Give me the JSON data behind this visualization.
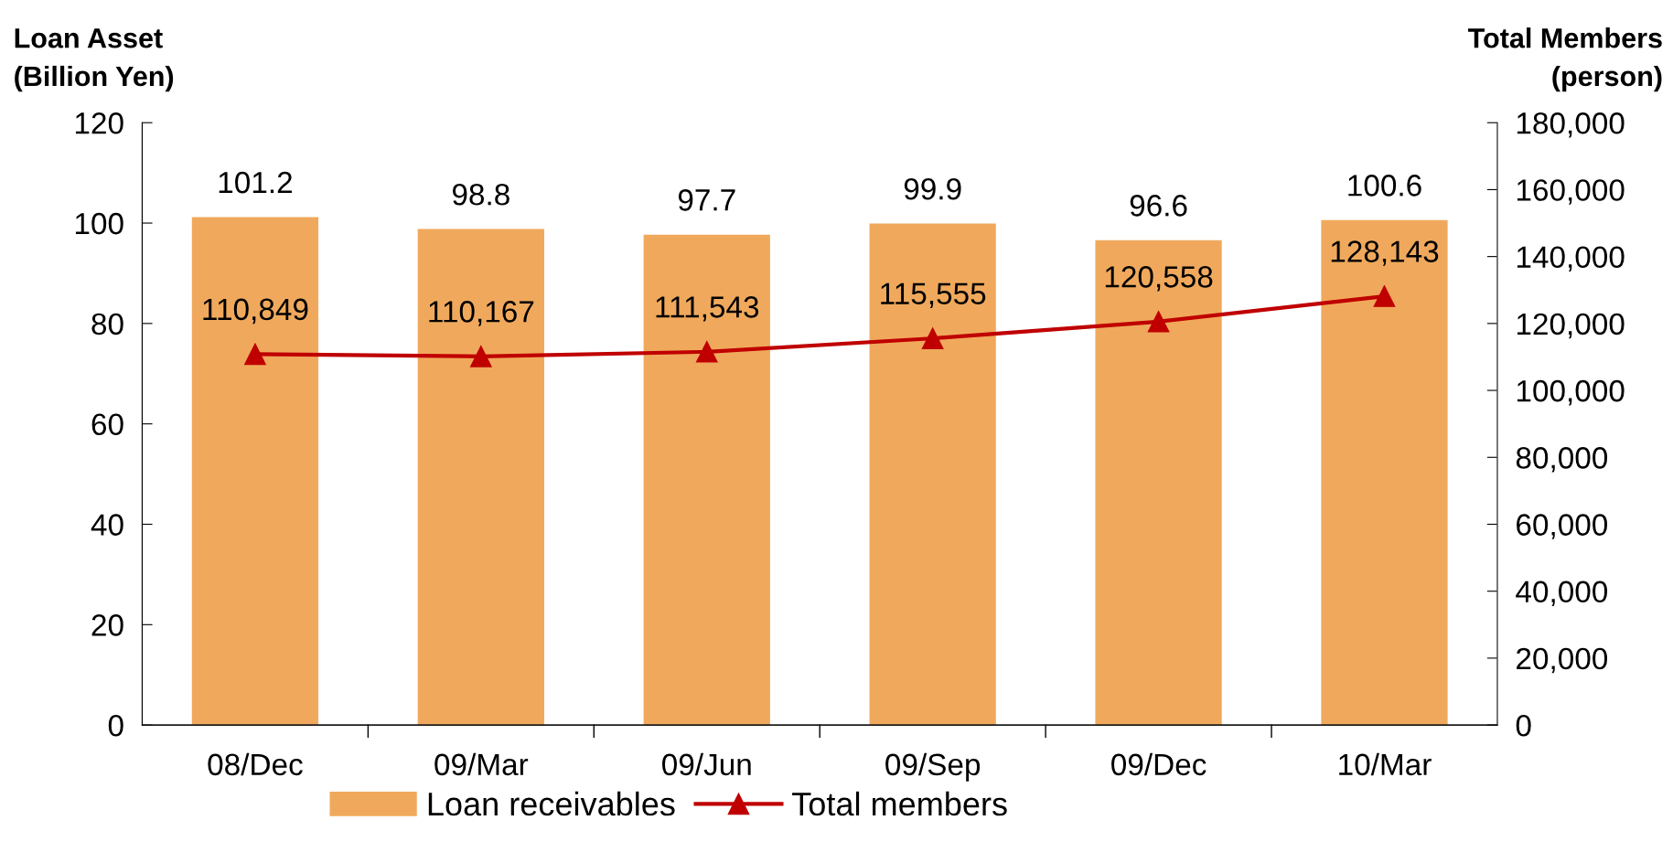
{
  "chart_data": {
    "type": "bar",
    "ylabel": "Loan Asset\n(Billion Yen)",
    "y2label": "Total Members\n(person)",
    "categories": [
      "08/Dec",
      "09/Mar",
      "09/Jun",
      "09/Sep",
      "09/Dec",
      "10/Mar"
    ],
    "series": [
      {
        "name": "Loan receivables",
        "color": "#f0a95c",
        "values": [
          101.2,
          98.8,
          97.7,
          99.9,
          96.6,
          100.6
        ]
      },
      {
        "name": "Total members",
        "type": "line",
        "axis": "y2",
        "color": "#c00000",
        "marker": "triangle",
        "values": [
          110849,
          110167,
          111543,
          115555,
          120558,
          128143
        ],
        "value_labels": [
          "110,849",
          "110,167",
          "111,543",
          "115,555",
          "120,558",
          "128,143"
        ]
      }
    ],
    "data_labels": true,
    "ylim": [
      0,
      120
    ],
    "yticks": [
      0,
      20,
      40,
      60,
      80,
      100,
      120
    ],
    "y2lim": [
      0,
      180000
    ],
    "y2ticks": [
      0,
      {
        "value": 20000,
        "label": "20,000"
      },
      {
        "value": 40000,
        "label": "40,000"
      },
      {
        "value": 60000,
        "label": "60,000"
      },
      {
        "value": 80000,
        "label": "80,000"
      },
      {
        "value": 100000,
        "label": "100,000"
      },
      {
        "value": 120000,
        "label": "120,000"
      },
      {
        "value": 140000,
        "label": "140,000"
      },
      {
        "value": 160000,
        "label": "160,000"
      },
      {
        "value": 180000,
        "label": "180,000"
      }
    ],
    "grid": false,
    "legend": "bottom"
  }
}
